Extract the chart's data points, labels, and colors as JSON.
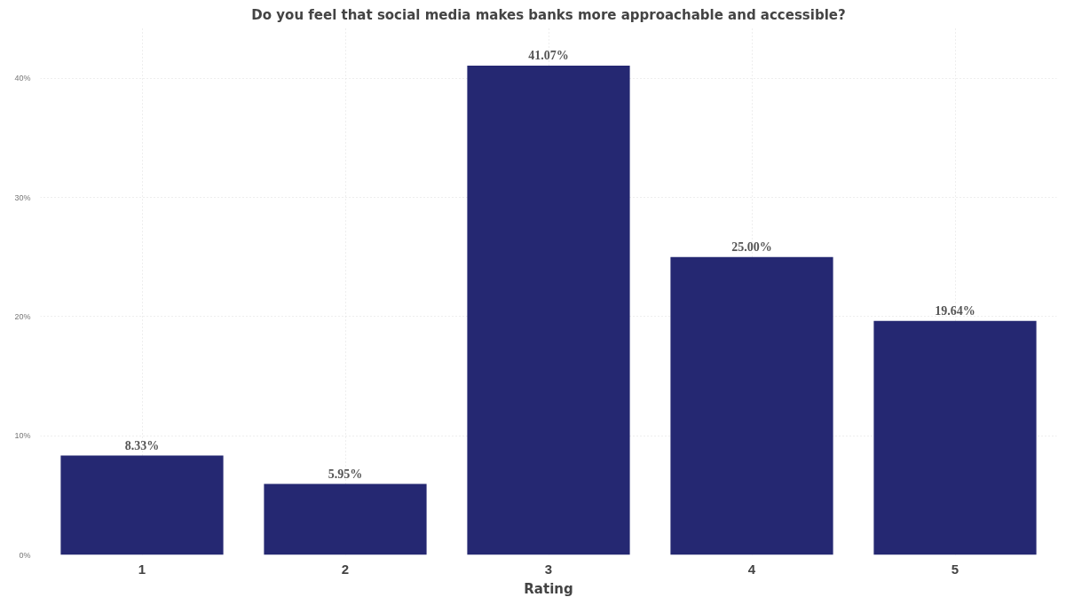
{
  "chart_data": {
    "type": "bar",
    "title": "Do you feel that social media makes banks more approachable and accessible?",
    "xlabel": "Rating",
    "categories": [
      "1",
      "2",
      "3",
      "4",
      "5"
    ],
    "values": [
      8.33,
      5.95,
      41.07,
      25.0,
      19.64
    ],
    "value_labels": [
      "8.33%",
      "5.95%",
      "41.07%",
      "25.00%",
      "19.64%"
    ],
    "color": "#252872",
    "ylim": [
      0,
      44.3
    ],
    "yticks": [
      {
        "value": 0,
        "label": "0%"
      },
      {
        "value": 10,
        "label": "10%"
      },
      {
        "value": 20,
        "label": "20%"
      },
      {
        "value": 30,
        "label": "30%"
      },
      {
        "value": 40,
        "label": "40%"
      }
    ],
    "grid": true
  }
}
